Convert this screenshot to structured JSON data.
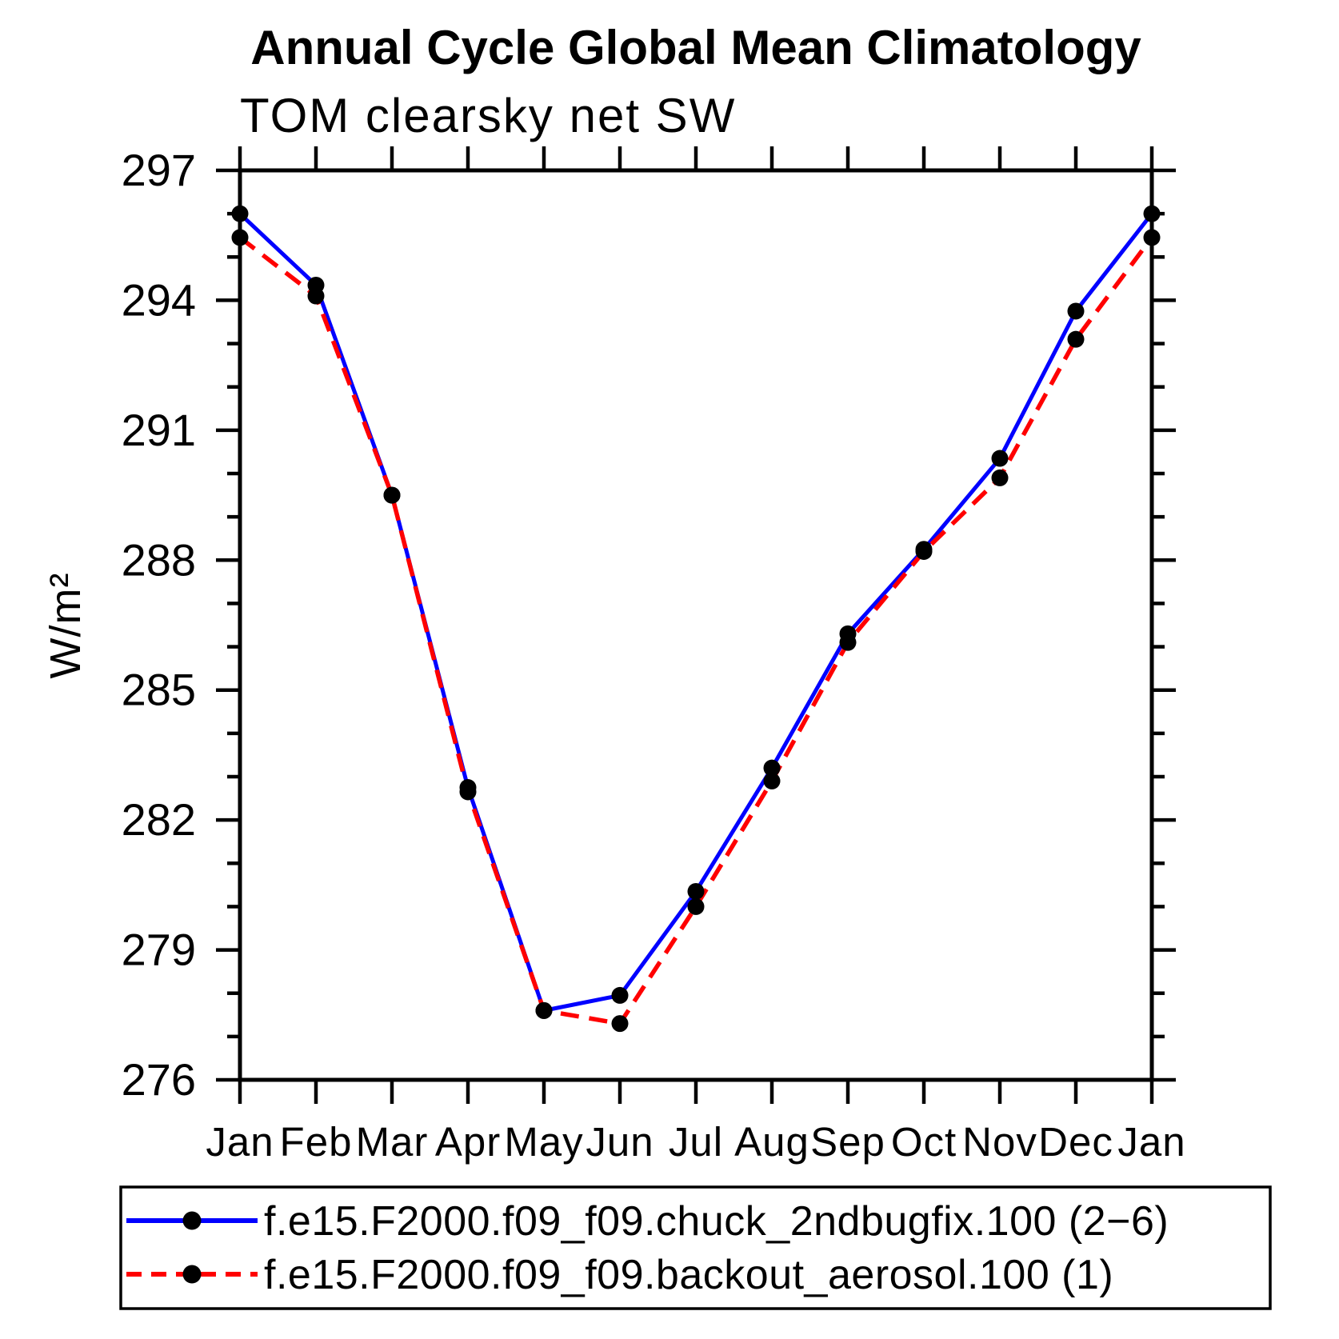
{
  "chart": {
    "title": "Annual Cycle Global Mean Climatology",
    "subtitle": "TOM clearsky net SW",
    "ylabel": "W/m²"
  },
  "chart_data": {
    "type": "line",
    "x_categories": [
      "Jan",
      "Feb",
      "Mar",
      "Apr",
      "May",
      "Jun",
      "Jul",
      "Aug",
      "Sep",
      "Oct",
      "Nov",
      "Dec",
      "Jan"
    ],
    "y_major_ticks": [
      276,
      279,
      282,
      285,
      288,
      291,
      294,
      297
    ],
    "y_minor_step": 1,
    "ylim": [
      276,
      297
    ],
    "grid": false,
    "legend_position": "bottom",
    "marker": {
      "shape": "circle",
      "color": "#000000"
    },
    "series": [
      {
        "name": "f.e15.F2000.f09_f09.chuck_2ndbugfix.100 (2−6)",
        "color": "#0000ff",
        "style": "solid",
        "values": [
          296.0,
          294.35,
          289.5,
          282.75,
          277.6,
          277.95,
          280.35,
          283.2,
          286.3,
          288.25,
          290.35,
          293.75,
          296.0
        ]
      },
      {
        "name": "f.e15.F2000.f09_f09.backout_aerosol.100 (1)",
        "color": "#ff0000",
        "style": "dashed",
        "values": [
          295.45,
          294.1,
          289.5,
          282.65,
          277.6,
          277.3,
          280.0,
          282.9,
          286.1,
          288.2,
          289.9,
          293.1,
          295.45
        ]
      }
    ]
  }
}
